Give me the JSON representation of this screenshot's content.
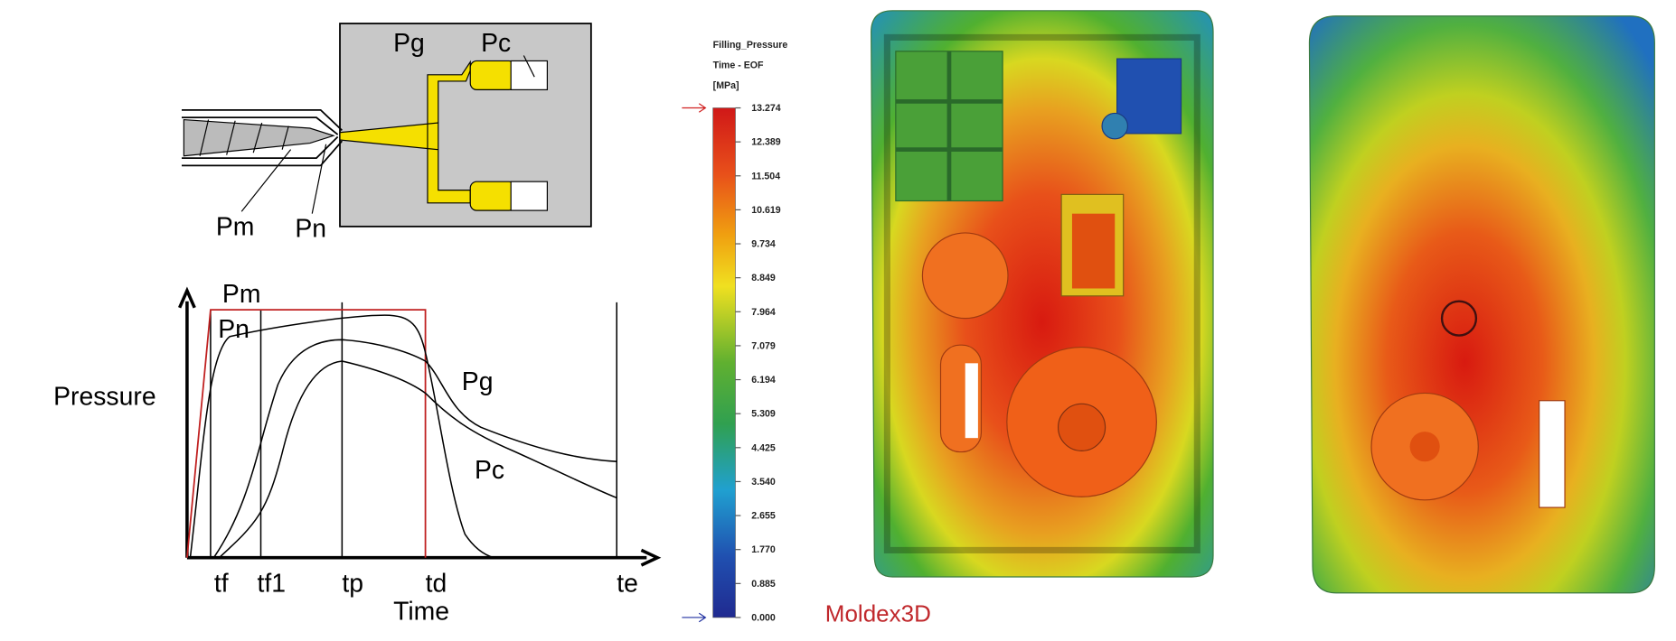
{
  "schematic": {
    "labels": {
      "pg": "Pg",
      "pc": "Pc",
      "pm": "Pm",
      "pn": "Pn"
    }
  },
  "pressure_plot": {
    "y_label": "Pressure",
    "x_label": "Time",
    "curve_labels": {
      "pm": "Pm",
      "pn": "Pn",
      "pg": "Pg",
      "pc": "Pc"
    },
    "time_marks": [
      "tf",
      "tf1",
      "tp",
      "td",
      "te"
    ]
  },
  "legend": {
    "title": "Filling_Pressure",
    "subtitle": "Time - EOF",
    "unit": "[MPa]",
    "ticks": [
      "13.274",
      "12.389",
      "11.504",
      "10.619",
      "9.734",
      "8.849",
      "7.964",
      "7.079",
      "6.194",
      "5.309",
      "4.425",
      "3.540",
      "2.655",
      "1.770",
      "0.885",
      "0.000"
    ]
  },
  "brand": "Moldex3D"
}
